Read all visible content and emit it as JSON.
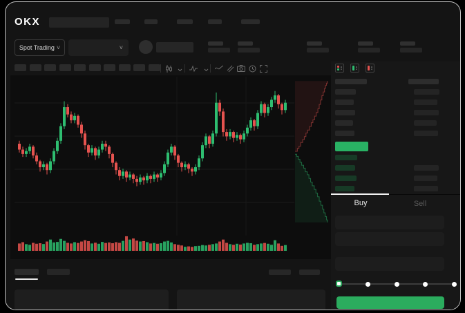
{
  "app": {
    "logo_text": "OKX"
  },
  "market_bar": {
    "mode_label": "Spot Trading"
  },
  "toolbar": {
    "timeframe_chip_count": 10,
    "icons": [
      "candle-style-icon",
      "chevron-down-icon",
      "chevron-down-icon",
      "indicators-icon",
      "chevron-down-icon",
      "line-tool-icon",
      "compare-icon",
      "camera-icon",
      "history-icon",
      "fullscreen-icon"
    ]
  },
  "order_book": {
    "view_icons": [
      "combined-book-icon",
      "bids-book-icon",
      "asks-book-icon"
    ],
    "header_bars": {
      "price_w": 46,
      "amount_w": 44
    },
    "asks": [
      {
        "pw": 30,
        "aw": 37
      },
      {
        "pw": 27,
        "aw": 34
      },
      {
        "pw": 29,
        "aw": 36
      },
      {
        "pw": 26,
        "aw": 33
      },
      {
        "pw": 28,
        "aw": 35
      }
    ],
    "last_price_highlight": {
      "color": "#29b264",
      "w": 48
    },
    "bids": [
      {
        "pw": 32,
        "aw": 0
      },
      {
        "pw": 29,
        "aw": 36
      },
      {
        "pw": 31,
        "aw": 34
      },
      {
        "pw": 28,
        "aw": 35
      }
    ]
  },
  "trade_panel": {
    "tabs": [
      {
        "label": "Buy",
        "active": true
      },
      {
        "label": "Sell",
        "active": false
      }
    ],
    "field_count": 3,
    "slider_stops": 5,
    "slider_selected_index": 0
  },
  "colors": {
    "candle_up": "#2ebd70",
    "candle_down": "#e5534f",
    "depth_ask": "#e5534f",
    "depth_bid": "#2ebd70",
    "accent_green": "#2bac5e",
    "last_price_bg": "#29b264",
    "active_tab_text": "#eaeaea",
    "inactive_tab_text": "#5a5a5a"
  },
  "chart_data": {
    "type": "candlestick",
    "title": "",
    "xlabel": "",
    "ylabel": "",
    "note": "Wireframe trading mock: no axis tick labels are rendered in the pixels; price values normalized to a 0-100 scale, volume normalized 0-100.",
    "format": [
      "open",
      "close",
      "low",
      "high",
      "volume"
    ],
    "candles": [
      [
        58,
        54,
        52,
        60,
        40
      ],
      [
        54,
        51,
        49,
        56,
        50
      ],
      [
        51,
        53,
        49,
        55,
        35
      ],
      [
        53,
        56,
        51,
        58,
        30
      ],
      [
        56,
        50,
        48,
        57,
        45
      ],
      [
        50,
        46,
        44,
        52,
        38
      ],
      [
        46,
        42,
        39,
        47,
        42
      ],
      [
        42,
        44,
        40,
        46,
        36
      ],
      [
        44,
        40,
        37,
        45,
        55
      ],
      [
        40,
        46,
        38,
        48,
        70
      ],
      [
        46,
        53,
        44,
        55,
        48
      ],
      [
        53,
        60,
        51,
        62,
        52
      ],
      [
        60,
        70,
        58,
        72,
        75
      ],
      [
        70,
        83,
        68,
        87,
        60
      ],
      [
        83,
        78,
        76,
        85,
        45
      ],
      [
        78,
        74,
        72,
        80,
        40
      ],
      [
        74,
        77,
        72,
        79,
        50
      ],
      [
        77,
        71,
        69,
        78,
        44
      ],
      [
        71,
        65,
        62,
        73,
        55
      ],
      [
        65,
        57,
        54,
        67,
        65
      ],
      [
        57,
        52,
        49,
        58,
        58
      ],
      [
        52,
        55,
        50,
        57,
        40
      ],
      [
        55,
        50,
        47,
        56,
        46
      ],
      [
        50,
        54,
        48,
        56,
        38
      ],
      [
        54,
        58,
        52,
        60,
        52
      ],
      [
        58,
        56,
        53,
        60,
        44
      ],
      [
        56,
        51,
        48,
        57,
        48
      ],
      [
        51,
        45,
        42,
        52,
        42
      ],
      [
        45,
        40,
        37,
        46,
        50
      ],
      [
        40,
        36,
        33,
        42,
        45
      ],
      [
        36,
        39,
        34,
        41,
        60
      ],
      [
        39,
        35,
        32,
        40,
        95
      ],
      [
        35,
        37,
        33,
        39,
        70
      ],
      [
        37,
        34,
        31,
        38,
        78
      ],
      [
        34,
        32,
        29,
        36,
        62
      ],
      [
        32,
        35,
        30,
        37,
        55
      ],
      [
        35,
        33,
        30,
        36,
        58
      ],
      [
        33,
        36,
        31,
        38,
        50
      ],
      [
        36,
        34,
        31,
        37,
        40
      ],
      [
        34,
        37,
        32,
        39,
        44
      ],
      [
        37,
        35,
        32,
        38,
        38
      ],
      [
        35,
        38,
        33,
        40,
        42
      ],
      [
        38,
        44,
        36,
        46,
        55
      ],
      [
        44,
        52,
        42,
        54,
        60
      ],
      [
        52,
        56,
        50,
        58,
        48
      ],
      [
        56,
        50,
        47,
        57,
        35
      ],
      [
        50,
        45,
        42,
        51,
        30
      ],
      [
        45,
        42,
        39,
        46,
        25
      ],
      [
        42,
        44,
        40,
        46,
        15
      ],
      [
        44,
        41,
        38,
        45,
        18
      ],
      [
        41,
        39,
        36,
        42,
        14
      ],
      [
        39,
        42,
        37,
        44,
        20
      ],
      [
        42,
        48,
        40,
        50,
        22
      ],
      [
        48,
        57,
        46,
        59,
        28
      ],
      [
        57,
        63,
        55,
        65,
        25
      ],
      [
        63,
        58,
        55,
        64,
        30
      ],
      [
        58,
        65,
        56,
        67,
        35
      ],
      [
        65,
        86,
        63,
        93,
        40
      ],
      [
        86,
        80,
        77,
        88,
        55
      ],
      [
        80,
        66,
        63,
        82,
        70
      ],
      [
        66,
        63,
        60,
        68,
        45
      ],
      [
        63,
        66,
        61,
        68,
        35
      ],
      [
        66,
        62,
        59,
        67,
        30
      ],
      [
        62,
        64,
        60,
        66,
        38
      ],
      [
        64,
        61,
        58,
        65,
        32
      ],
      [
        61,
        65,
        59,
        67,
        40
      ],
      [
        65,
        69,
        63,
        71,
        45
      ],
      [
        69,
        74,
        67,
        76,
        42
      ],
      [
        74,
        70,
        67,
        75,
        30
      ],
      [
        70,
        79,
        68,
        81,
        35
      ],
      [
        79,
        85,
        77,
        87,
        40
      ],
      [
        85,
        79,
        76,
        86,
        44
      ],
      [
        79,
        83,
        77,
        85,
        38
      ],
      [
        83,
        88,
        81,
        90,
        30
      ],
      [
        88,
        91,
        86,
        94,
        65
      ],
      [
        91,
        85,
        82,
        92,
        40
      ],
      [
        85,
        81,
        78,
        86,
        22
      ],
      [
        81,
        86,
        79,
        88,
        28
      ]
    ],
    "depth": {
      "type": "area",
      "orientation": "vertical",
      "asks": [
        [
          0,
          0.5
        ],
        [
          0.07,
          0.48
        ],
        [
          0.12,
          0.465
        ],
        [
          0.17,
          0.44
        ],
        [
          0.23,
          0.42
        ],
        [
          0.28,
          0.4
        ],
        [
          0.33,
          0.375
        ],
        [
          0.38,
          0.355
        ],
        [
          0.44,
          0.33
        ],
        [
          0.49,
          0.305
        ],
        [
          0.54,
          0.285
        ],
        [
          0.59,
          0.26
        ],
        [
          0.64,
          0.235
        ],
        [
          0.69,
          0.21
        ],
        [
          0.73,
          0.18
        ],
        [
          0.77,
          0.15
        ],
        [
          0.81,
          0.12
        ],
        [
          0.85,
          0.095
        ],
        [
          0.89,
          0.07
        ],
        [
          0.92,
          0.05
        ],
        [
          0.95,
          0.035
        ],
        [
          0.98,
          0.02
        ]
      ],
      "bids": [
        [
          0,
          0.52
        ],
        [
          0.05,
          0.535
        ],
        [
          0.1,
          0.555
        ],
        [
          0.15,
          0.575
        ],
        [
          0.2,
          0.595
        ],
        [
          0.26,
          0.615
        ],
        [
          0.31,
          0.64
        ],
        [
          0.37,
          0.66
        ],
        [
          0.42,
          0.685
        ],
        [
          0.47,
          0.71
        ],
        [
          0.52,
          0.735
        ],
        [
          0.58,
          0.76
        ],
        [
          0.63,
          0.785
        ],
        [
          0.68,
          0.81
        ],
        [
          0.73,
          0.84
        ],
        [
          0.78,
          0.868
        ],
        [
          0.83,
          0.895
        ],
        [
          0.87,
          0.92
        ],
        [
          0.91,
          0.945
        ],
        [
          0.95,
          0.968
        ],
        [
          0.98,
          0.985
        ]
      ]
    }
  }
}
